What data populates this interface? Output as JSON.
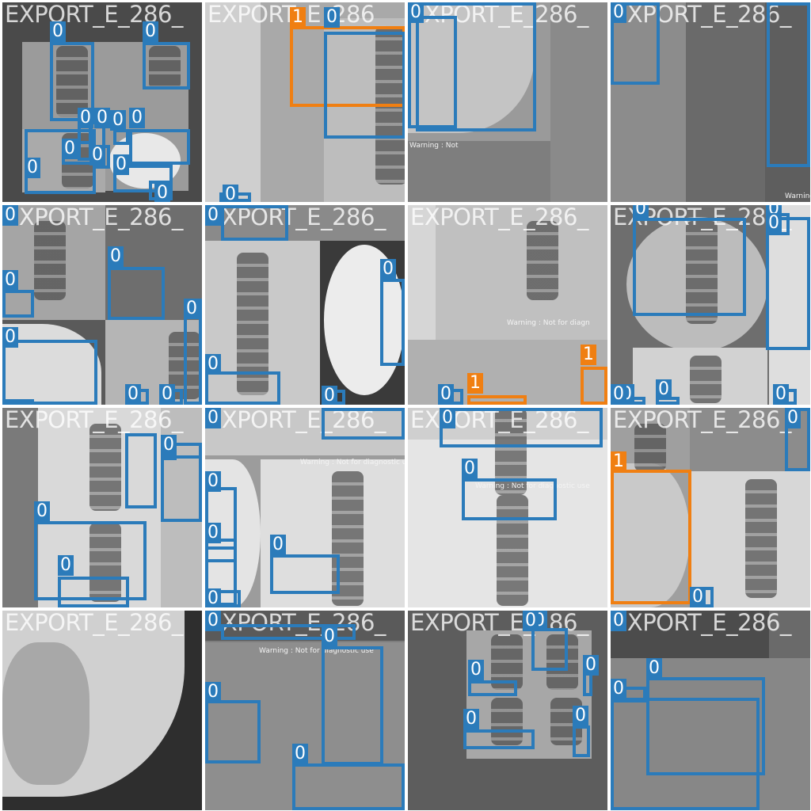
{
  "mosaic": {
    "tiles": [
      {
        "title": "EXPORT_E_286_",
        "boxes": [
          {
            "cls": "0"
          },
          {
            "cls": "0"
          },
          {
            "cls": "0"
          },
          {
            "cls": "0"
          },
          {
            "cls": "0"
          },
          {
            "cls": "0"
          },
          {
            "cls": "0"
          },
          {
            "cls": "0"
          },
          {
            "cls": "0"
          },
          {
            "cls": "0"
          },
          {
            "cls": "0"
          }
        ]
      },
      {
        "title": "EXPORT_E_286_",
        "boxes": [
          {
            "cls": "1"
          },
          {
            "cls": "0"
          },
          {
            "cls": "0"
          }
        ]
      },
      {
        "title": "EXPORT_E_286_",
        "boxes": [
          {
            "cls": "0"
          },
          {
            "cls": "0"
          }
        ],
        "warning": "Warning : Not"
      },
      {
        "title": "EXPORT_E_286_",
        "boxes": [
          {
            "cls": "0"
          },
          {
            "cls": "0"
          }
        ],
        "warning": "Warning :"
      },
      {
        "title": "EXPORT_E_286_",
        "boxes": [
          {
            "cls": "0"
          },
          {
            "cls": "0"
          },
          {
            "cls": "0"
          },
          {
            "cls": "0"
          },
          {
            "cls": "0"
          },
          {
            "cls": "0"
          },
          {
            "cls": "0"
          }
        ]
      },
      {
        "title": "EXPORT_E_286_",
        "boxes": [
          {
            "cls": "0"
          },
          {
            "cls": "0"
          },
          {
            "cls": "0"
          },
          {
            "cls": "0"
          },
          {
            "cls": "0"
          }
        ]
      },
      {
        "title": "EXPORT_E_286_",
        "boxes": [
          {
            "cls": "1"
          },
          {
            "cls": "1"
          },
          {
            "cls": "0"
          }
        ],
        "warning": "Warning : Not for diagn"
      },
      {
        "title": "EXPORT_E_286_",
        "boxes": [
          {
            "cls": "0"
          },
          {
            "cls": "0"
          },
          {
            "cls": "0"
          },
          {
            "cls": "0"
          },
          {
            "cls": "0"
          },
          {
            "cls": "0"
          },
          {
            "cls": "0"
          }
        ]
      },
      {
        "title": "EXPORT_E_286_",
        "boxes": [
          {
            "cls": "0"
          },
          {
            "cls": "0"
          },
          {
            "cls": "0"
          },
          {
            "cls": "0"
          },
          {
            "cls": "0"
          }
        ]
      },
      {
        "title": "EXPORT_E_286_",
        "boxes": [
          {
            "cls": "0"
          },
          {
            "cls": "0"
          },
          {
            "cls": "0"
          },
          {
            "cls": "0"
          },
          {
            "cls": "0"
          },
          {
            "cls": "0"
          }
        ],
        "warning": "Warning : Not for diagnostic use"
      },
      {
        "title": "EXPORT_E_286_",
        "boxes": [
          {
            "cls": "0"
          },
          {
            "cls": "0"
          }
        ],
        "warning": "Warning : Not for diagnostic use"
      },
      {
        "title": "EXPORT_E_286_",
        "boxes": [
          {
            "cls": "1"
          },
          {
            "cls": "0"
          },
          {
            "cls": "0"
          }
        ]
      },
      {
        "title": "EXPORT_E_286_",
        "boxes": []
      },
      {
        "title": "EXPORT_E_286_",
        "boxes": [
          {
            "cls": "0"
          },
          {
            "cls": "0"
          },
          {
            "cls": "0"
          },
          {
            "cls": "0"
          }
        ],
        "warning": "Warning : Not for diagnostic use"
      },
      {
        "title": "EXPORT_E_286_",
        "boxes": [
          {
            "cls": "0"
          },
          {
            "cls": "0"
          },
          {
            "cls": "0"
          },
          {
            "cls": "0"
          },
          {
            "cls": "0"
          },
          {
            "cls": "0"
          }
        ]
      },
      {
        "title": "EXPORT_E_286_",
        "boxes": [
          {
            "cls": "0"
          },
          {
            "cls": "0"
          },
          {
            "cls": "0"
          }
        ]
      }
    ]
  },
  "colors": {
    "class_0": "#2b7bba",
    "class_1": "#f07f12"
  }
}
